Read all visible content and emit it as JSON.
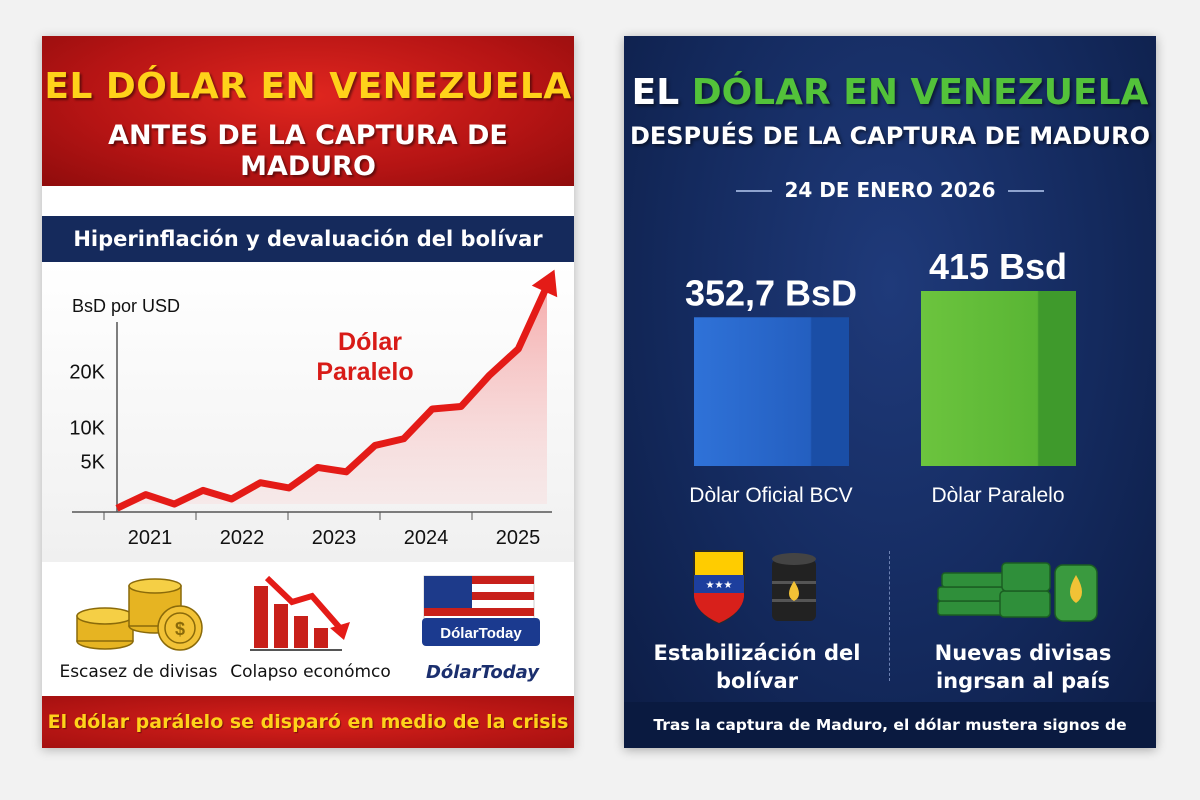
{
  "left": {
    "title_line1": "EL DÓLAR EN VENEZUELA",
    "title_line2": "ANTES DE LA CAPTURA DE MADURO",
    "subtitle": "Hiperinflación y devaluación del bolívar",
    "footer": "El dólar parálelo se disparó en medio de la crisis",
    "icons": [
      {
        "icon": "gold-coins-icon",
        "label": "Escasez de divisas"
      },
      {
        "icon": "falling-chart-icon",
        "label": "Colapso económco"
      },
      {
        "icon": "dolartoday-flag-icon",
        "label": "DólarToday",
        "badge": "DólarToday"
      }
    ]
  },
  "right": {
    "title_line1_a": "EL ",
    "title_line1_b": "DÓLAR EN VENEZUELA",
    "title_line2": "DESPUÉS DE LA CAPTURA DE MADURO",
    "date": "24 DE ENERO 2026",
    "icons": [
      {
        "icon": "venezuela-shield-oil-icon",
        "label_line1": "Estabilizáción del",
        "label_line2": "bolívar"
      },
      {
        "icon": "money-stacks-oil-icon",
        "label_line1": "Nuevas divisas",
        "label_line2": "ingrsan al país"
      }
    ],
    "footer": "Tras la captura de Maduro, el dólar mustera signos de ajuste"
  },
  "colors": {
    "red": "#c41a17",
    "yellow": "#ffd21a",
    "navy": "#152a5c",
    "blue_bar": "#2f6fd1",
    "green_bar": "#5cb83a"
  },
  "chart_data": [
    {
      "type": "area",
      "title": "",
      "ylabel": "BsD por USD",
      "xlabel": "",
      "x_ticks": [
        "2021",
        "2022",
        "2023",
        "2024",
        "2025"
      ],
      "y_ticks": [
        "5K",
        "10K",
        "20K"
      ],
      "annotation": "Dólar Paralelo",
      "series": [
        {
          "name": "Dólar Paralelo",
          "x": [
            2020.7,
            2021.0,
            2021.3,
            2021.6,
            2021.9,
            2022.2,
            2022.5,
            2022.8,
            2023.1,
            2023.4,
            2023.7,
            2024.0,
            2024.3,
            2024.6,
            2024.9,
            2025.2
          ],
          "values": [
            200,
            400,
            700,
            900,
            1300,
            1800,
            2600,
            3600,
            4500,
            6200,
            8400,
            10500,
            12200,
            14500,
            19000,
            25000
          ]
        }
      ],
      "grid": false
    },
    {
      "type": "bar",
      "title": "",
      "categories": [
        "Dòlar Oficial BCV",
        "Dòlar Paralelo"
      ],
      "values": [
        352.7,
        415
      ],
      "data_labels": [
        "352,7 BsD",
        "415 Bsd"
      ],
      "colors": [
        "#2f6fd1",
        "#5cb83a"
      ],
      "grid": false
    }
  ]
}
